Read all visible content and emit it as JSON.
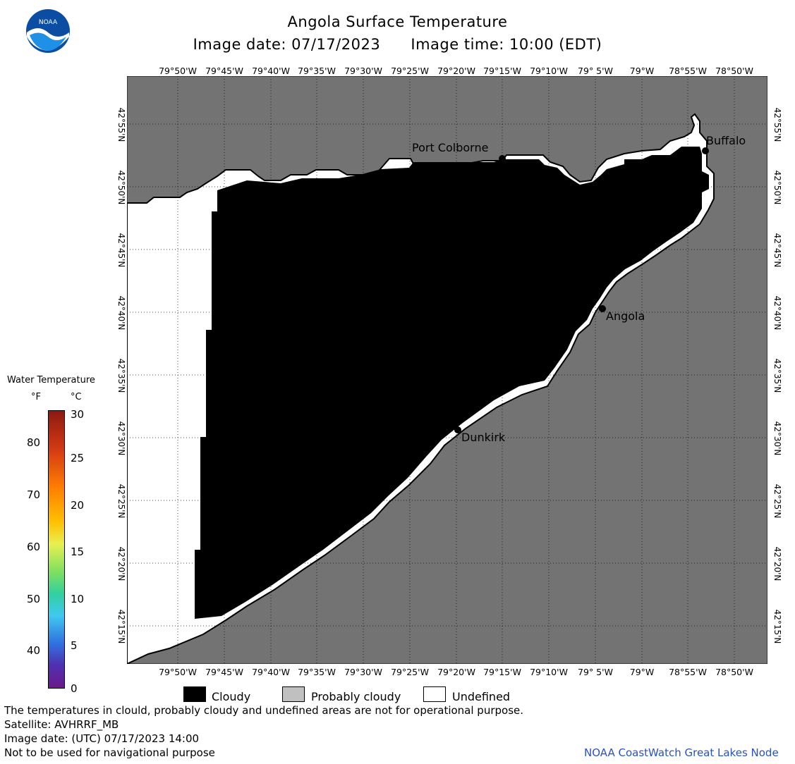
{
  "title": "Angola Surface Temperature",
  "image_date_label": "Image date: 07/17/2023",
  "image_time_label": "Image time: 10:00 (EDT)",
  "logo_text": "NOAA",
  "lon_labels": [
    "79°50'W",
    "79°45'W",
    "79°40'W",
    "79°35'W",
    "79°30'W",
    "79°25'W",
    "79°20'W",
    "79°15'W",
    "79°10'W",
    "79° 5'W",
    "79°W",
    "78°55'W",
    "78°50'W"
  ],
  "lat_labels": [
    "42°55'N",
    "42°50'N",
    "42°45'N",
    "42°40'N",
    "42°35'N",
    "42°30'N",
    "42°25'N",
    "42°20'N",
    "42°15'N"
  ],
  "places": {
    "port_colborne": "Port Colborne",
    "buffalo": "Buffalo",
    "angola": "Angola",
    "dunkirk": "Dunkirk"
  },
  "legend": {
    "title": "Water Temperature",
    "unit_f": "°F",
    "unit_c": "°C",
    "ticks_f": [
      "80",
      "70",
      "60",
      "50",
      "40"
    ],
    "ticks_c": [
      "30",
      "25",
      "20",
      "15",
      "10",
      "5",
      "0"
    ],
    "cloudy": "Cloudy",
    "probably_cloudy": "Probably cloudy",
    "undefined": "Undefined"
  },
  "footer": {
    "line1": "The temperatures in clould, probably cloudy and undefined areas are not for operational purpose.",
    "line2": "Satellite: AVHRRF_MB",
    "line3": "Image date: (UTC) 07/17/2023  14:00",
    "line4": "Not to be used for navigational purpose",
    "credit": "NOAA CoastWatch Great Lakes Node"
  },
  "colors": {
    "land": "#737373",
    "cloudy": "#000000",
    "undefined": "#ffffff",
    "probably_cloudy": "#c0c0c0",
    "credit_text": "#2a52be"
  }
}
